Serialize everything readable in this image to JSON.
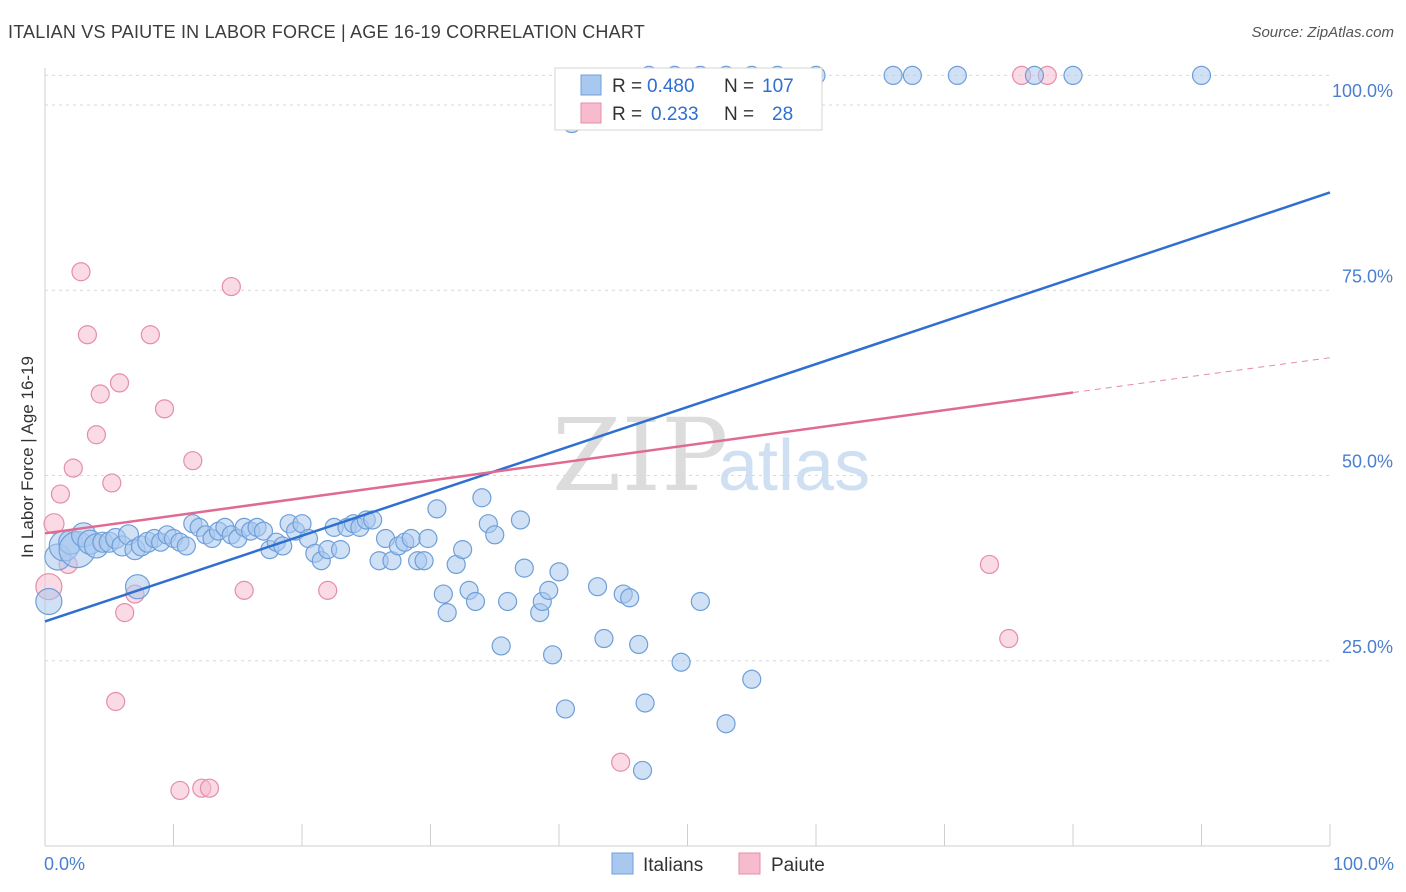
{
  "header": {
    "title": "ITALIAN VS PAIUTE IN LABOR FORCE | AGE 16-19 CORRELATION CHART",
    "source": "Source: ZipAtlas.com"
  },
  "watermark": {
    "zip": "ZIP",
    "atlas": "atlas"
  },
  "colors": {
    "italians_fill": "#a9c8ef",
    "italians_stroke": "#6e9fd9",
    "italians_line": "#2f6fd0",
    "paiute_fill": "#f6bccd",
    "paiute_stroke": "#e58ea8",
    "paiute_line": "#e06b92",
    "grid": "#d9d9d9",
    "axis_text": "#4a7fcf"
  },
  "legend": {
    "rows": [
      {
        "r_label": "R =",
        "r_value": "0.480",
        "n_label": "N =",
        "n_value": "107"
      },
      {
        "r_label": "R =",
        "r_value": "0.233",
        "n_label": "N =",
        "n_value": "28"
      }
    ]
  },
  "bottom_legend": {
    "italians": "Italians",
    "paiute": "Paiute"
  },
  "chart_data": {
    "type": "scatter",
    "title": "ITALIAN VS PAIUTE IN LABOR FORCE | AGE 16-19 CORRELATION CHART",
    "xlabel": "",
    "ylabel": "In Labor Force | Age 16-19",
    "xlim": [
      0,
      100
    ],
    "ylim": [
      0,
      105
    ],
    "x_tick_labels": [
      "0.0%",
      "100.0%"
    ],
    "y_ticks": [
      25,
      50,
      75,
      100
    ],
    "y_tick_labels": [
      "25.0%",
      "50.0%",
      "75.0%",
      "100.0%"
    ],
    "grid": true,
    "legend_position": "top-center",
    "series": [
      {
        "name": "Italians",
        "R": 0.48,
        "N": 107,
        "trend": {
          "x": [
            0,
            100
          ],
          "y": [
            30.3,
            88.2
          ]
        },
        "points": [
          [
            0.3,
            33.0,
            13
          ],
          [
            1,
            39,
            13
          ],
          [
            1.5,
            40.5,
            15
          ],
          [
            2,
            41,
            12
          ],
          [
            2.5,
            40,
            18
          ],
          [
            3,
            42,
            12
          ],
          [
            3.5,
            41,
            12
          ],
          [
            4,
            40.5,
            12
          ],
          [
            4.5,
            41,
            10
          ],
          [
            5,
            41,
            10
          ],
          [
            5.5,
            41.5,
            10
          ],
          [
            6,
            40.5,
            10
          ],
          [
            6.5,
            42,
            10
          ],
          [
            7,
            40,
            10
          ],
          [
            7.2,
            35,
            12
          ],
          [
            7.5,
            40.5,
            10
          ],
          [
            8,
            41,
            10
          ],
          [
            8.5,
            41.5,
            9
          ],
          [
            9,
            41,
            9
          ],
          [
            9.5,
            42,
            9
          ],
          [
            10,
            41.5,
            9
          ],
          [
            10.5,
            41,
            9
          ],
          [
            11,
            40.5,
            9
          ],
          [
            11.5,
            43.5,
            9
          ],
          [
            12,
            43,
            9
          ],
          [
            12.5,
            42,
            9
          ],
          [
            13,
            41.5,
            9
          ],
          [
            13.5,
            42.5,
            9
          ],
          [
            14,
            43,
            9
          ],
          [
            14.5,
            42,
            9
          ],
          [
            15,
            41.5,
            9
          ],
          [
            15.5,
            43,
            9
          ],
          [
            16,
            42.5,
            9
          ],
          [
            16.5,
            43,
            9
          ],
          [
            17,
            42.5,
            9
          ],
          [
            17.5,
            40,
            9
          ],
          [
            18,
            41,
            9
          ],
          [
            18.5,
            40.5,
            9
          ],
          [
            19,
            43.5,
            9
          ],
          [
            19.5,
            42.5,
            9
          ],
          [
            20,
            43.5,
            9
          ],
          [
            20.5,
            41.5,
            9
          ],
          [
            21,
            39.5,
            9
          ],
          [
            21.5,
            38.5,
            9
          ],
          [
            22,
            40,
            9
          ],
          [
            22.5,
            43,
            9
          ],
          [
            23,
            40,
            9
          ],
          [
            23.5,
            43,
            9
          ],
          [
            24,
            43.5,
            9
          ],
          [
            24.5,
            43,
            9
          ],
          [
            25,
            44,
            9
          ],
          [
            25.5,
            44,
            9
          ],
          [
            26,
            38.5,
            9
          ],
          [
            26.5,
            41.5,
            9
          ],
          [
            27,
            38.5,
            9
          ],
          [
            27.5,
            40.5,
            9
          ],
          [
            28,
            41,
            9
          ],
          [
            28.5,
            41.5,
            9
          ],
          [
            29,
            38.5,
            9
          ],
          [
            29.5,
            38.5,
            9
          ],
          [
            29.8,
            41.5,
            9
          ],
          [
            30.5,
            45.5,
            9
          ],
          [
            31,
            34,
            9
          ],
          [
            31.3,
            31.5,
            9
          ],
          [
            32,
            38,
            9
          ],
          [
            32.5,
            40,
            9
          ],
          [
            33,
            34.5,
            9
          ],
          [
            33.5,
            33,
            9
          ],
          [
            34,
            47,
            9
          ],
          [
            34.5,
            43.5,
            9
          ],
          [
            35,
            42,
            9
          ],
          [
            35.5,
            27,
            9
          ],
          [
            36,
            33,
            9
          ],
          [
            37,
            44,
            9
          ],
          [
            37.3,
            37.5,
            9
          ],
          [
            38.5,
            31.5,
            9
          ],
          [
            38.7,
            33,
            9
          ],
          [
            39.2,
            34.5,
            9
          ],
          [
            39.5,
            25.8,
            9
          ],
          [
            40,
            37,
            9
          ],
          [
            40.5,
            18.5,
            9
          ],
          [
            43,
            35,
            9
          ],
          [
            43.5,
            28,
            9
          ],
          [
            45,
            34,
            9
          ],
          [
            45.5,
            33.5,
            9
          ],
          [
            46.2,
            27.2,
            9
          ],
          [
            46.5,
            10.2,
            9
          ],
          [
            46.7,
            19.3,
            9
          ],
          [
            49.5,
            24.8,
            9
          ],
          [
            51,
            33,
            9
          ],
          [
            53,
            16.5,
            9
          ],
          [
            55,
            22.5,
            9
          ],
          [
            41,
            97.5,
            9
          ],
          [
            47,
            104,
            9
          ],
          [
            49,
            104,
            9
          ],
          [
            51,
            104,
            9
          ],
          [
            53,
            104,
            9
          ],
          [
            55,
            104,
            9
          ],
          [
            57,
            104,
            9
          ],
          [
            60,
            104,
            9
          ],
          [
            66,
            104,
            9
          ],
          [
            67.5,
            104,
            9
          ],
          [
            71,
            104,
            9
          ],
          [
            77,
            104,
            9
          ],
          [
            80,
            104,
            9
          ],
          [
            90,
            104,
            9
          ]
        ]
      },
      {
        "name": "Paiute",
        "R": 0.233,
        "N": 28,
        "trend": {
          "x": [
            0,
            80
          ],
          "y": [
            42.2,
            61.2
          ]
        },
        "trend_dashed": {
          "x": [
            80,
            100
          ],
          "y": [
            61.2,
            65.9
          ]
        },
        "points": [
          [
            0.3,
            35,
            13
          ],
          [
            0.7,
            43.5,
            10
          ],
          [
            1.2,
            47.5,
            9
          ],
          [
            1.8,
            38,
            9
          ],
          [
            2.2,
            51,
            9
          ],
          [
            2.8,
            77.5,
            9
          ],
          [
            3.3,
            69,
            9
          ],
          [
            4,
            55.5,
            9
          ],
          [
            4.3,
            61,
            9
          ],
          [
            5.2,
            49,
            9
          ],
          [
            5.5,
            19.5,
            9
          ],
          [
            5.8,
            62.5,
            9
          ],
          [
            6.2,
            31.5,
            9
          ],
          [
            7,
            34,
            9
          ],
          [
            8.2,
            69,
            9
          ],
          [
            9.3,
            59,
            9
          ],
          [
            10.5,
            7.5,
            9
          ],
          [
            11.5,
            52,
            9
          ],
          [
            12.2,
            7.8,
            9
          ],
          [
            12.8,
            7.8,
            9
          ],
          [
            14.5,
            75.5,
            9
          ],
          [
            15.5,
            34.5,
            9
          ],
          [
            22,
            34.5,
            9
          ],
          [
            44.8,
            11.3,
            9
          ],
          [
            73.5,
            38,
            9
          ],
          [
            75,
            28,
            9
          ],
          [
            76,
            104,
            9
          ],
          [
            78,
            104,
            9
          ]
        ]
      }
    ]
  }
}
